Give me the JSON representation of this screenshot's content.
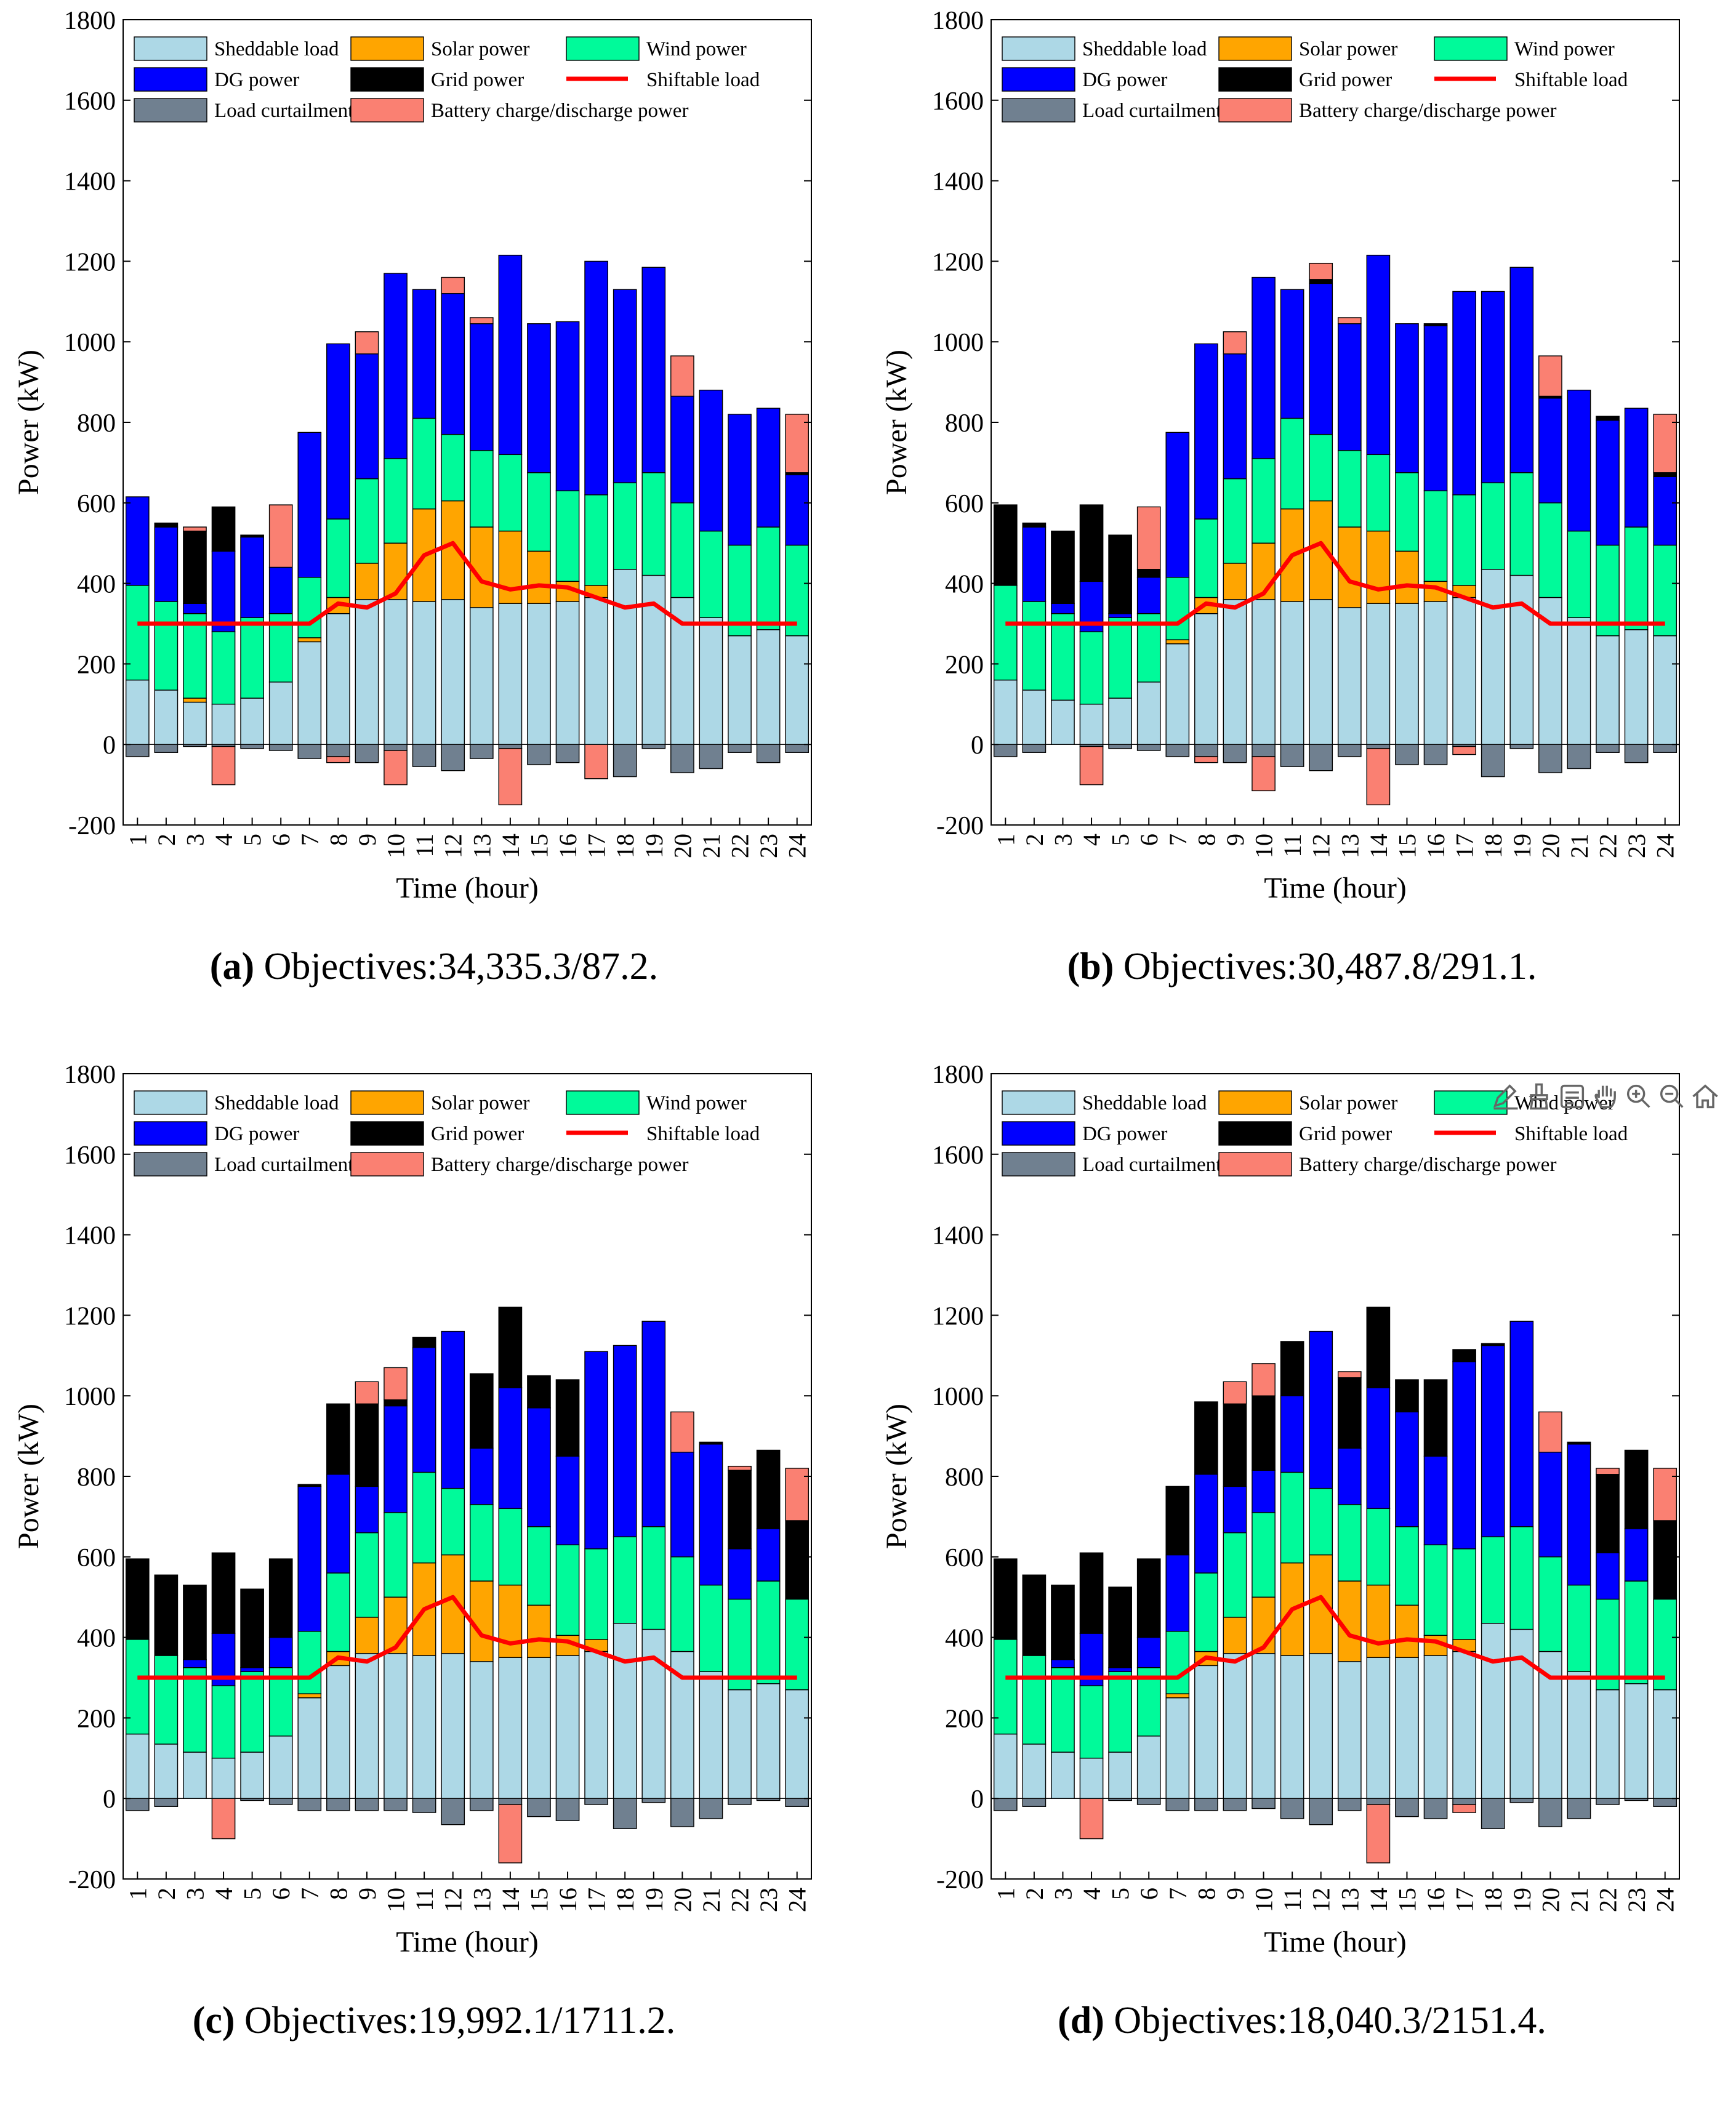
{
  "legend": {
    "sheddable": "Sheddable load",
    "solar": "Solar power",
    "wind": "Wind power",
    "dg": "DG power",
    "grid": "Grid power",
    "shiftable": "Shiftable load",
    "curtail": "Load curtailment",
    "battery": "Battery charge/discharge power"
  },
  "colors": {
    "sheddable": "#add8e6",
    "solar": "#ffa500",
    "wind": "#00fa9a",
    "dg": "#0000ff",
    "grid": "#000000",
    "shiftable": "#ff0000",
    "curtail": "#708090",
    "battery": "#fa8072"
  },
  "chart_data": [
    {
      "type": "bar",
      "panel": "a",
      "caption_label": "(a)",
      "caption_text": "Objectives:34,335.3/87.2.",
      "xlabel": "Time (hour)",
      "ylabel": "Power (kW)",
      "ylim": [
        -200,
        1800
      ],
      "yticks": [
        -200,
        0,
        200,
        400,
        600,
        800,
        1000,
        1200,
        1400,
        1600,
        1800
      ],
      "categories": [
        "1",
        "2",
        "3",
        "4",
        "5",
        "6",
        "7",
        "8",
        "9",
        "10",
        "11",
        "12",
        "13",
        "14",
        "15",
        "16",
        "17",
        "18",
        "19",
        "20",
        "21",
        "22",
        "23",
        "24"
      ],
      "series": [
        {
          "key": "sheddable",
          "values": [
            160,
            135,
            105,
            100,
            115,
            155,
            255,
            325,
            360,
            360,
            355,
            360,
            340,
            350,
            350,
            355,
            365,
            435,
            420,
            365,
            315,
            270,
            285,
            270
          ]
        },
        {
          "key": "solar",
          "values": [
            0,
            0,
            10,
            0,
            0,
            0,
            10,
            40,
            90,
            140,
            230,
            245,
            200,
            180,
            130,
            50,
            30,
            0,
            0,
            0,
            0,
            0,
            0,
            0
          ]
        },
        {
          "key": "wind",
          "values": [
            235,
            220,
            210,
            180,
            200,
            170,
            150,
            195,
            210,
            210,
            225,
            165,
            190,
            190,
            195,
            225,
            225,
            215,
            255,
            235,
            215,
            225,
            255,
            225
          ]
        },
        {
          "key": "dg",
          "values": [
            220,
            185,
            25,
            200,
            200,
            115,
            360,
            435,
            310,
            460,
            320,
            350,
            315,
            495,
            370,
            420,
            580,
            480,
            510,
            265,
            350,
            325,
            295,
            175
          ]
        },
        {
          "key": "grid",
          "values": [
            0,
            10,
            180,
            110,
            5,
            0,
            0,
            0,
            0,
            0,
            0,
            0,
            0,
            0,
            0,
            0,
            0,
            0,
            0,
            0,
            0,
            0,
            0,
            5
          ]
        },
        {
          "key": "curtail",
          "values": [
            -30,
            -20,
            -5,
            -5,
            -10,
            -15,
            -35,
            -30,
            -45,
            -15,
            -55,
            -65,
            -35,
            -10,
            -50,
            -45,
            0,
            -80,
            -10,
            -70,
            -60,
            -20,
            -45,
            -20
          ]
        },
        {
          "key": "battery",
          "values": [
            0,
            0,
            10,
            -95,
            0,
            155,
            0,
            -15,
            55,
            -85,
            0,
            40,
            15,
            -140,
            0,
            0,
            -85,
            0,
            0,
            100,
            0,
            0,
            0,
            145
          ]
        }
      ],
      "shiftable": [
        300,
        300,
        300,
        300,
        300,
        300,
        300,
        350,
        340,
        375,
        470,
        500,
        405,
        385,
        395,
        390,
        365,
        340,
        350,
        300,
        300,
        300,
        300,
        300
      ]
    },
    {
      "type": "bar",
      "panel": "b",
      "caption_label": "(b)",
      "caption_text": "Objectives:30,487.8/291.1.",
      "xlabel": "Time (hour)",
      "ylabel": "Power (kW)",
      "ylim": [
        -200,
        1800
      ],
      "yticks": [
        -200,
        0,
        200,
        400,
        600,
        800,
        1000,
        1200,
        1400,
        1600,
        1800
      ],
      "categories": [
        "1",
        "2",
        "3",
        "4",
        "5",
        "6",
        "7",
        "8",
        "9",
        "10",
        "11",
        "12",
        "13",
        "14",
        "15",
        "16",
        "17",
        "18",
        "19",
        "20",
        "21",
        "22",
        "23",
        "24"
      ],
      "series": [
        {
          "key": "sheddable",
          "values": [
            160,
            135,
            110,
            100,
            115,
            155,
            250,
            325,
            360,
            360,
            355,
            360,
            340,
            350,
            350,
            355,
            365,
            435,
            420,
            365,
            315,
            270,
            285,
            270
          ]
        },
        {
          "key": "solar",
          "values": [
            0,
            0,
            0,
            0,
            0,
            0,
            10,
            40,
            90,
            140,
            230,
            245,
            200,
            180,
            130,
            50,
            30,
            0,
            0,
            0,
            0,
            0,
            0,
            0
          ]
        },
        {
          "key": "wind",
          "values": [
            235,
            220,
            215,
            180,
            200,
            170,
            155,
            195,
            210,
            210,
            225,
            165,
            190,
            190,
            195,
            225,
            225,
            215,
            255,
            235,
            215,
            225,
            255,
            225
          ]
        },
        {
          "key": "dg",
          "values": [
            0,
            185,
            25,
            125,
            10,
            90,
            360,
            435,
            310,
            450,
            320,
            375,
            315,
            495,
            370,
            410,
            505,
            475,
            510,
            260,
            350,
            310,
            295,
            170
          ]
        },
        {
          "key": "grid",
          "values": [
            200,
            10,
            180,
            190,
            195,
            20,
            0,
            0,
            0,
            0,
            0,
            10,
            0,
            0,
            0,
            5,
            0,
            0,
            0,
            5,
            0,
            10,
            0,
            10
          ]
        },
        {
          "key": "curtail",
          "values": [
            -30,
            -20,
            0,
            -5,
            -10,
            -15,
            -30,
            -30,
            -45,
            -30,
            -55,
            -65,
            -30,
            -10,
            -50,
            -50,
            -5,
            -80,
            -10,
            -70,
            -60,
            -20,
            -45,
            -20
          ]
        },
        {
          "key": "battery",
          "values": [
            0,
            0,
            0,
            -95,
            0,
            155,
            0,
            -15,
            55,
            -85,
            0,
            40,
            15,
            -140,
            0,
            0,
            -20,
            0,
            0,
            100,
            0,
            0,
            0,
            145
          ]
        }
      ],
      "shiftable": [
        300,
        300,
        300,
        300,
        300,
        300,
        300,
        350,
        340,
        375,
        470,
        500,
        405,
        385,
        395,
        390,
        365,
        340,
        350,
        300,
        300,
        300,
        300,
        300
      ]
    },
    {
      "type": "bar",
      "panel": "c",
      "caption_label": "(c)",
      "caption_text": "Objectives:19,992.1/1711.2.",
      "xlabel": "Time (hour)",
      "ylabel": "Power (kW)",
      "ylim": [
        -200,
        1800
      ],
      "yticks": [
        -200,
        0,
        200,
        400,
        600,
        800,
        1000,
        1200,
        1400,
        1600,
        1800
      ],
      "categories": [
        "1",
        "2",
        "3",
        "4",
        "5",
        "6",
        "7",
        "8",
        "9",
        "10",
        "11",
        "12",
        "13",
        "14",
        "15",
        "16",
        "17",
        "18",
        "19",
        "20",
        "21",
        "22",
        "23",
        "24"
      ],
      "series": [
        {
          "key": "sheddable",
          "values": [
            160,
            135,
            115,
            100,
            115,
            155,
            250,
            330,
            360,
            360,
            355,
            360,
            340,
            350,
            350,
            355,
            365,
            435,
            420,
            365,
            315,
            270,
            285,
            270
          ]
        },
        {
          "key": "solar",
          "values": [
            0,
            0,
            0,
            0,
            0,
            0,
            10,
            35,
            90,
            140,
            230,
            245,
            200,
            180,
            130,
            50,
            30,
            0,
            0,
            0,
            0,
            0,
            0,
            0
          ]
        },
        {
          "key": "wind",
          "values": [
            235,
            220,
            210,
            180,
            200,
            170,
            155,
            195,
            210,
            210,
            225,
            165,
            190,
            190,
            195,
            225,
            225,
            215,
            255,
            235,
            215,
            225,
            255,
            225
          ]
        },
        {
          "key": "dg",
          "values": [
            0,
            0,
            20,
            130,
            10,
            75,
            360,
            245,
            115,
            265,
            310,
            390,
            140,
            300,
            295,
            220,
            490,
            475,
            510,
            260,
            350,
            125,
            130,
            0
          ]
        },
        {
          "key": "grid",
          "values": [
            200,
            200,
            185,
            200,
            195,
            195,
            5,
            175,
            205,
            15,
            25,
            0,
            185,
            200,
            80,
            190,
            0,
            0,
            0,
            0,
            5,
            195,
            195,
            195
          ]
        },
        {
          "key": "curtail",
          "values": [
            -30,
            -20,
            0,
            0,
            -5,
            -15,
            -30,
            -30,
            -30,
            -30,
            -35,
            -65,
            -30,
            -15,
            -45,
            -55,
            -15,
            -75,
            -10,
            -70,
            -50,
            -15,
            -5,
            -20
          ]
        },
        {
          "key": "battery",
          "values": [
            0,
            0,
            0,
            -100,
            0,
            0,
            0,
            0,
            55,
            80,
            0,
            0,
            0,
            -145,
            0,
            0,
            0,
            0,
            0,
            100,
            0,
            10,
            0,
            130
          ]
        }
      ],
      "shiftable": [
        300,
        300,
        300,
        300,
        300,
        300,
        300,
        350,
        340,
        375,
        470,
        500,
        405,
        385,
        395,
        390,
        365,
        340,
        350,
        300,
        300,
        300,
        300,
        300
      ]
    },
    {
      "type": "bar",
      "panel": "d",
      "caption_label": "(d)",
      "caption_text": "Objectives:18,040.3/2151.4.",
      "xlabel": "Time (hour)",
      "ylabel": "Power (kW)",
      "ylim": [
        -200,
        1800
      ],
      "yticks": [
        -200,
        0,
        200,
        400,
        600,
        800,
        1000,
        1200,
        1400,
        1600,
        1800
      ],
      "categories": [
        "1",
        "2",
        "3",
        "4",
        "5",
        "6",
        "7",
        "8",
        "9",
        "10",
        "11",
        "12",
        "13",
        "14",
        "15",
        "16",
        "17",
        "18",
        "19",
        "20",
        "21",
        "22",
        "23",
        "24"
      ],
      "series": [
        {
          "key": "sheddable",
          "values": [
            160,
            135,
            115,
            100,
            115,
            155,
            250,
            330,
            360,
            360,
            355,
            360,
            340,
            350,
            350,
            355,
            365,
            435,
            420,
            365,
            315,
            270,
            285,
            270
          ]
        },
        {
          "key": "solar",
          "values": [
            0,
            0,
            0,
            0,
            0,
            0,
            10,
            35,
            90,
            140,
            230,
            245,
            200,
            180,
            130,
            50,
            30,
            0,
            0,
            0,
            0,
            0,
            0,
            0
          ]
        },
        {
          "key": "wind",
          "values": [
            235,
            220,
            210,
            180,
            200,
            170,
            155,
            195,
            210,
            210,
            225,
            165,
            190,
            190,
            195,
            225,
            225,
            215,
            255,
            235,
            215,
            225,
            255,
            225
          ]
        },
        {
          "key": "dg",
          "values": [
            0,
            0,
            20,
            130,
            10,
            75,
            190,
            245,
            115,
            105,
            190,
            390,
            140,
            300,
            285,
            220,
            465,
            475,
            510,
            260,
            350,
            115,
            130,
            0
          ]
        },
        {
          "key": "grid",
          "values": [
            200,
            200,
            185,
            200,
            200,
            195,
            170,
            180,
            205,
            185,
            135,
            0,
            175,
            200,
            80,
            190,
            30,
            5,
            0,
            0,
            5,
            195,
            195,
            195
          ]
        },
        {
          "key": "curtail",
          "values": [
            -30,
            -20,
            0,
            0,
            -5,
            -15,
            -30,
            -30,
            -30,
            -25,
            -50,
            -65,
            -30,
            -15,
            -45,
            -50,
            -15,
            -75,
            -10,
            -70,
            -50,
            -15,
            -5,
            -20
          ]
        },
        {
          "key": "battery",
          "values": [
            0,
            0,
            0,
            -100,
            0,
            0,
            0,
            0,
            55,
            80,
            0,
            0,
            15,
            -145,
            0,
            0,
            -20,
            0,
            0,
            100,
            0,
            15,
            0,
            130
          ]
        }
      ],
      "shiftable": [
        300,
        300,
        300,
        300,
        300,
        300,
        300,
        350,
        340,
        375,
        470,
        500,
        405,
        385,
        395,
        390,
        365,
        340,
        350,
        300,
        300,
        300,
        300,
        300
      ]
    }
  ],
  "toolbar": [
    "edit-icon",
    "brush-icon",
    "data-tip-icon",
    "pan-icon",
    "zoom-in-icon",
    "zoom-out-icon",
    "home-icon"
  ]
}
